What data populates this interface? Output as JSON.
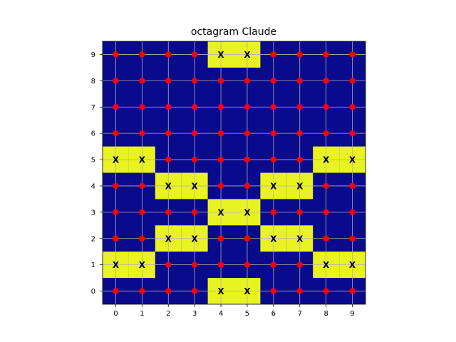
{
  "chart_data": {
    "type": "heatmap",
    "title": "octagram Claude",
    "xlabel": "",
    "ylabel": "",
    "x_ticks": [
      "0",
      "1",
      "2",
      "3",
      "4",
      "5",
      "6",
      "7",
      "8",
      "9"
    ],
    "y_ticks": [
      "0",
      "1",
      "2",
      "3",
      "4",
      "5",
      "6",
      "7",
      "8",
      "9"
    ],
    "xlim": [
      -0.5,
      9.5
    ],
    "ylim": [
      -0.5,
      9.5
    ],
    "grid": true,
    "colors": {
      "background": "#0a0a8c",
      "highlight": "#eaf322",
      "dot": "#ff0000",
      "grid": "#b0b0b0",
      "x_mark": "#000000"
    },
    "dot_marker": "red-circle",
    "mark_symbol": "X",
    "highlighted_cells": [
      {
        "x": 4,
        "y": 9
      },
      {
        "x": 5,
        "y": 9
      },
      {
        "x": 0,
        "y": 5
      },
      {
        "x": 1,
        "y": 5
      },
      {
        "x": 8,
        "y": 5
      },
      {
        "x": 9,
        "y": 5
      },
      {
        "x": 2,
        "y": 4
      },
      {
        "x": 3,
        "y": 4
      },
      {
        "x": 6,
        "y": 4
      },
      {
        "x": 7,
        "y": 4
      },
      {
        "x": 4,
        "y": 3
      },
      {
        "x": 5,
        "y": 3
      },
      {
        "x": 2,
        "y": 2
      },
      {
        "x": 3,
        "y": 2
      },
      {
        "x": 6,
        "y": 2
      },
      {
        "x": 7,
        "y": 2
      },
      {
        "x": 0,
        "y": 1
      },
      {
        "x": 1,
        "y": 1
      },
      {
        "x": 8,
        "y": 1
      },
      {
        "x": 9,
        "y": 1
      },
      {
        "x": 4,
        "y": 0
      },
      {
        "x": 5,
        "y": 0
      }
    ]
  }
}
